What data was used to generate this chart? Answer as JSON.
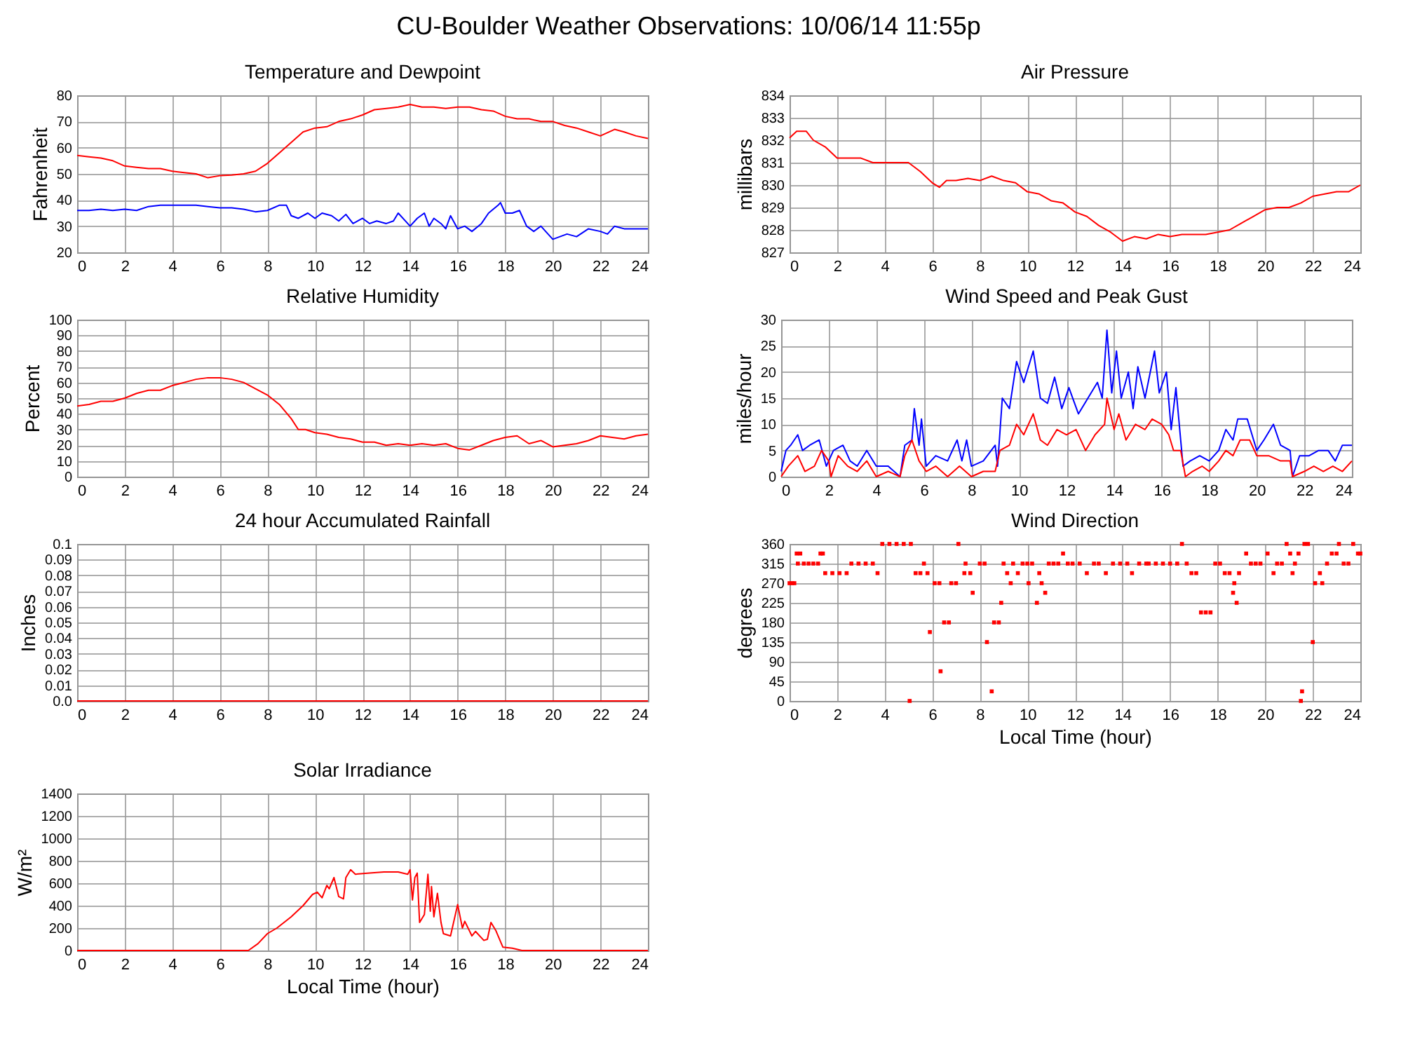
{
  "chart_data": [
    {
      "type": "line",
      "title": "Temperature and Dewpoint",
      "ylabel": "Fahrenheit",
      "annotations": [
        "CU-Boulder Weather Observations: 10/06/14 11:55p"
      ],
      "xlim": [
        0,
        24
      ],
      "xticks": [
        0,
        2,
        4,
        6,
        8,
        10,
        12,
        14,
        16,
        18,
        20,
        22,
        24
      ],
      "ylim": [
        20,
        80
      ],
      "yticks": [
        20,
        30,
        40,
        50,
        60,
        70,
        80
      ],
      "grid": true,
      "series": [
        {
          "color": "#ff0000",
          "x": [
            0,
            0.5,
            1,
            1.5,
            2,
            2.5,
            3,
            3.5,
            4,
            4.5,
            5,
            5.5,
            6,
            6.5,
            7,
            7.5,
            8,
            8.5,
            9,
            9.5,
            10,
            10.5,
            11,
            11.5,
            12,
            12.5,
            13,
            13.5,
            14,
            14.5,
            15,
            15.5,
            16,
            16.5,
            17,
            17.5,
            18,
            18.5,
            19,
            19.5,
            20,
            20.5,
            21,
            21.5,
            22,
            22.6,
            23,
            23.5,
            24
          ],
          "values": [
            57,
            56.5,
            56,
            55,
            53,
            52.5,
            52,
            52,
            51,
            50.5,
            50,
            48.5,
            49.3,
            49.5,
            50,
            51,
            54,
            58,
            62,
            66,
            67.5,
            68,
            70,
            71,
            72.5,
            74.5,
            75,
            75.5,
            76.5,
            75.5,
            75.5,
            75,
            75.5,
            75.5,
            74.5,
            74,
            72,
            71,
            71,
            70,
            70,
            68.5,
            67.5,
            66,
            64.5,
            67,
            66,
            64.5,
            63.5
          ]
        },
        {
          "color": "#0000ff",
          "x": [
            0,
            0.5,
            1,
            1.5,
            2,
            2.5,
            3,
            3.5,
            4,
            4.5,
            5,
            5.5,
            6,
            6.5,
            7,
            7.5,
            8,
            8.5,
            8.8,
            9,
            9.3,
            9.7,
            10,
            10.3,
            10.7,
            11,
            11.3,
            11.6,
            12,
            12.3,
            12.6,
            13,
            13.3,
            13.5,
            13.8,
            14,
            14.3,
            14.6,
            14.8,
            15,
            15.3,
            15.5,
            15.7,
            16,
            16.3,
            16.6,
            17,
            17.3,
            17.7,
            17.8,
            18,
            18.3,
            18.6,
            18.9,
            19.2,
            19.5,
            19.8,
            20,
            20.3,
            20.6,
            21,
            21.5,
            22,
            22.3,
            22.6,
            23,
            23.5,
            24
          ],
          "values": [
            36,
            36,
            36.5,
            36,
            36.5,
            36,
            37.5,
            38,
            38,
            38,
            38,
            37.5,
            37,
            37,
            36.5,
            35.5,
            36,
            38,
            38,
            34,
            33,
            35,
            33,
            35,
            34,
            32,
            34.5,
            31,
            33,
            31,
            32,
            31,
            32,
            35,
            32,
            30,
            33,
            35,
            30,
            33,
            31,
            29,
            34,
            29,
            30,
            28,
            31,
            35,
            38,
            39,
            35,
            35,
            36,
            30,
            28,
            30,
            27,
            25,
            26,
            27,
            26,
            29,
            28,
            27,
            30,
            29,
            29,
            29
          ]
        }
      ]
    },
    {
      "type": "line",
      "title": "Air Pressure",
      "ylabel": "millibars",
      "xlim": [
        0,
        24
      ],
      "xticks": [
        0,
        2,
        4,
        6,
        8,
        10,
        12,
        14,
        16,
        18,
        20,
        22,
        24
      ],
      "ylim": [
        827,
        834
      ],
      "yticks": [
        827,
        828,
        829,
        830,
        831,
        832,
        833,
        834
      ],
      "grid": true,
      "series": [
        {
          "color": "#ff0000",
          "x": [
            0,
            0.3,
            0.7,
            1,
            1.5,
            2,
            2.5,
            3,
            3.5,
            4,
            4.5,
            5,
            5.5,
            6,
            6.3,
            6.6,
            7,
            7.5,
            8,
            8.5,
            9,
            9.5,
            10,
            10.5,
            11,
            11.5,
            12,
            12.5,
            13,
            13.5,
            14,
            14.5,
            15,
            15.5,
            16,
            16.5,
            17,
            17.5,
            18,
            18.5,
            19,
            19.5,
            20,
            20.5,
            21,
            21.5,
            22,
            22.5,
            23,
            23.5,
            24
          ],
          "values": [
            832.1,
            832.4,
            832.4,
            832,
            831.7,
            831.2,
            831.2,
            831.2,
            831,
            831,
            831,
            831,
            830.6,
            830.1,
            829.9,
            830.2,
            830.2,
            830.3,
            830.2,
            830.4,
            830.2,
            830.1,
            829.7,
            829.6,
            829.3,
            829.2,
            828.8,
            828.6,
            828.2,
            827.9,
            827.5,
            827.7,
            827.6,
            827.8,
            827.7,
            827.8,
            827.8,
            827.8,
            827.9,
            828,
            828.3,
            828.6,
            828.9,
            829,
            829,
            829.2,
            829.5,
            829.6,
            829.7,
            829.7,
            830
          ]
        }
      ]
    },
    {
      "type": "line",
      "title": "Relative Humidity",
      "ylabel": "Percent",
      "xlim": [
        0,
        24
      ],
      "xticks": [
        0,
        2,
        4,
        6,
        8,
        10,
        12,
        14,
        16,
        18,
        20,
        22,
        24
      ],
      "ylim": [
        0,
        100
      ],
      "yticks": [
        0,
        10,
        20,
        30,
        40,
        50,
        60,
        70,
        80,
        90,
        100
      ],
      "grid": true,
      "series": [
        {
          "color": "#ff0000",
          "x": [
            0,
            0.5,
            1,
            1.5,
            2,
            2.5,
            3,
            3.5,
            4,
            4.5,
            5,
            5.5,
            6,
            6.5,
            7,
            7.5,
            8,
            8.5,
            9,
            9.3,
            9.6,
            10,
            10.5,
            11,
            11.5,
            12,
            12.5,
            13,
            13.5,
            14,
            14.5,
            15,
            15.5,
            16,
            16.5,
            17,
            17.5,
            18,
            18.5,
            19,
            19.5,
            20,
            20.5,
            21,
            21.5,
            22,
            22.5,
            23,
            23.5,
            24
          ],
          "values": [
            45,
            46,
            48,
            48,
            50,
            53,
            55,
            55,
            58,
            60,
            62,
            63,
            63,
            62,
            60,
            56,
            52,
            46,
            37,
            30,
            30,
            28,
            27,
            25,
            24,
            22,
            22,
            20,
            21,
            20,
            21,
            20,
            21,
            18,
            17,
            20,
            23,
            25,
            26,
            21,
            23,
            19,
            20,
            21,
            23,
            26,
            25,
            24,
            26,
            27
          ]
        }
      ]
    },
    {
      "type": "line",
      "title": "Wind Speed and Peak Gust",
      "ylabel": "miles/hour",
      "xlim": [
        0,
        24
      ],
      "xticks": [
        0,
        2,
        4,
        6,
        8,
        10,
        12,
        14,
        16,
        18,
        20,
        22,
        24
      ],
      "ylim": [
        0,
        30
      ],
      "yticks": [
        0,
        5,
        10,
        15,
        20,
        25,
        30
      ],
      "grid": true,
      "series": [
        {
          "color": "#0000ff",
          "x": [
            0,
            0.2,
            0.4,
            0.7,
            0.9,
            1.2,
            1.6,
            1.9,
            2.2,
            2.6,
            2.9,
            3.2,
            3.6,
            4,
            4.5,
            5,
            5.2,
            5.5,
            5.6,
            5.8,
            5.9,
            6.1,
            6.5,
            7,
            7.4,
            7.6,
            7.8,
            8,
            8.5,
            9,
            9.1,
            9.3,
            9.6,
            9.9,
            10.2,
            10.6,
            10.9,
            11.2,
            11.5,
            11.8,
            12.1,
            12.5,
            12.9,
            13.3,
            13.5,
            13.7,
            13.9,
            14.1,
            14.3,
            14.6,
            14.8,
            15,
            15.3,
            15.7,
            15.9,
            16.2,
            16.4,
            16.6,
            16.9,
            17.2,
            17.6,
            18,
            18.4,
            18.7,
            19,
            19.2,
            19.6,
            19.8,
            20,
            20.3,
            20.7,
            21,
            21.4,
            21.5,
            21.8,
            22.2,
            22.6,
            23,
            23.3,
            23.6,
            24
          ],
          "values": [
            1,
            5,
            6,
            8,
            5,
            6,
            7,
            2,
            5,
            6,
            3,
            2,
            5,
            2,
            2,
            0,
            6,
            7,
            13,
            6,
            11,
            2,
            4,
            3,
            7,
            3,
            7,
            2,
            3,
            6,
            2,
            15,
            13,
            22,
            18,
            24,
            15,
            14,
            19,
            13,
            17,
            12,
            15,
            18,
            15,
            28,
            16,
            24,
            15,
            20,
            13,
            21,
            15,
            24,
            16,
            20,
            9,
            17,
            2,
            3,
            4,
            3,
            5,
            9,
            7,
            11,
            11,
            8,
            5,
            7,
            10,
            6,
            5,
            0,
            4,
            4,
            5,
            5,
            3,
            6,
            6
          ]
        },
        {
          "color": "#ff0000",
          "x": [
            0,
            0.3,
            0.7,
            1,
            1.4,
            1.7,
            2,
            2.1,
            2.4,
            2.8,
            3.2,
            3.6,
            4,
            4.5,
            5,
            5.2,
            5.5,
            5.8,
            6.1,
            6.5,
            7,
            7.5,
            8,
            8.5,
            9,
            9.2,
            9.6,
            9.9,
            10.2,
            10.6,
            10.9,
            11.2,
            11.6,
            12,
            12.4,
            12.8,
            13.2,
            13.6,
            13.7,
            14,
            14.2,
            14.5,
            14.9,
            15.3,
            15.6,
            16,
            16.3,
            16.5,
            16.8,
            17,
            17.3,
            17.7,
            18,
            18.4,
            18.7,
            19,
            19.3,
            19.7,
            20,
            20.5,
            21,
            21.4,
            21.5,
            22,
            22.4,
            22.8,
            23.2,
            23.6,
            24
          ],
          "values": [
            0,
            2,
            4,
            1,
            2,
            5,
            3,
            0,
            4,
            2,
            1,
            3,
            0,
            1,
            0,
            4,
            7,
            3,
            1,
            2,
            0,
            2,
            0,
            1,
            1,
            5,
            6,
            10,
            8,
            12,
            7,
            6,
            9,
            8,
            9,
            5,
            8,
            10,
            15,
            9,
            12,
            7,
            10,
            9,
            11,
            10,
            8,
            5,
            5,
            0,
            1,
            2,
            1,
            3,
            5,
            4,
            7,
            7,
            4,
            4,
            3,
            3,
            0,
            1,
            2,
            1,
            2,
            1,
            3
          ]
        }
      ]
    },
    {
      "type": "line",
      "title": "24 hour Accumulated Rainfall",
      "ylabel": "Inches",
      "xlim": [
        0,
        24
      ],
      "xticks": [
        0,
        2,
        4,
        6,
        8,
        10,
        12,
        14,
        16,
        18,
        20,
        22,
        24
      ],
      "ylim": [
        0,
        0.1
      ],
      "yticks": [
        {
          "value": 0,
          "label": "0.0"
        },
        0.01,
        0.02,
        0.03,
        0.04,
        0.05,
        0.06,
        0.07,
        0.08,
        0.09,
        0.1
      ],
      "grid": true,
      "series": [
        {
          "color": "#ff0000",
          "x": [
            0,
            24
          ],
          "values": [
            0,
            0
          ]
        }
      ]
    },
    {
      "type": "scatter",
      "title": "Wind Direction",
      "ylabel": "degrees",
      "xlabel": "Local Time (hour)",
      "marker": "square",
      "xlim": [
        0,
        24
      ],
      "xticks": [
        0,
        2,
        4,
        6,
        8,
        10,
        12,
        14,
        16,
        18,
        20,
        22,
        24
      ],
      "ylim": [
        0,
        360
      ],
      "yticks": [
        0,
        45,
        90,
        135,
        180,
        225,
        270,
        315,
        360
      ],
      "grid": true,
      "series": [
        {
          "color": "#ff0000",
          "x": [
            0,
            0.1,
            0.2,
            0.3,
            0.35,
            0.45,
            0.6,
            0.8,
            1,
            1.2,
            1.3,
            1.4,
            1.5,
            1.8,
            2.1,
            2.4,
            2.6,
            2.9,
            3.2,
            3.5,
            3.7,
            3.9,
            4.2,
            4.5,
            4.8,
            5.05,
            5.1,
            5.3,
            5.5,
            5.65,
            5.8,
            5.9,
            6.1,
            6.3,
            6.35,
            6.5,
            6.7,
            6.8,
            7,
            7.1,
            7.35,
            7.4,
            7.6,
            7.7,
            8,
            8.2,
            8.3,
            8.5,
            8.6,
            8.8,
            8.9,
            9,
            9.15,
            9.3,
            9.4,
            9.6,
            9.8,
            10,
            10.05,
            10.2,
            10.4,
            10.5,
            10.6,
            10.75,
            10.9,
            11.1,
            11.3,
            11.5,
            11.7,
            11.9,
            12.2,
            12.5,
            12.8,
            13,
            13.3,
            13.6,
            13.9,
            14.2,
            14.4,
            14.7,
            15,
            15.1,
            15.4,
            15.7,
            16,
            16.3,
            16.5,
            16.7,
            16.9,
            17.1,
            17.3,
            17.5,
            17.7,
            17.9,
            18.1,
            18.3,
            18.5,
            18.65,
            18.7,
            18.8,
            18.9,
            19.2,
            19.4,
            19.6,
            19.8,
            20.1,
            20.35,
            20.5,
            20.7,
            20.9,
            21.05,
            21.15,
            21.25,
            21.4,
            21.5,
            21.55,
            21.65,
            21.8,
            22,
            22.1,
            22.3,
            22.4,
            22.6,
            22.8,
            23,
            23.1,
            23.3,
            23.5,
            23.7,
            23.9,
            24
          ],
          "values": [
            270,
            270,
            270,
            338,
            315,
            338,
            315,
            315,
            315,
            315,
            338,
            338,
            293,
            293,
            293,
            293,
            315,
            315,
            315,
            315,
            293,
            360,
            360,
            360,
            360,
            0,
            360,
            293,
            293,
            315,
            293,
            158,
            270,
            270,
            68,
            180,
            180,
            270,
            270,
            360,
            293,
            315,
            293,
            248,
            315,
            315,
            135,
            22,
            180,
            180,
            225,
            315,
            293,
            270,
            315,
            293,
            315,
            315,
            270,
            315,
            225,
            293,
            270,
            248,
            315,
            315,
            315,
            338,
            315,
            315,
            315,
            293,
            315,
            315,
            293,
            315,
            315,
            315,
            293,
            315,
            315,
            315,
            315,
            315,
            315,
            315,
            360,
            315,
            293,
            293,
            203,
            203,
            203,
            315,
            315,
            293,
            293,
            248,
            270,
            225,
            293,
            338,
            315,
            315,
            315,
            338,
            293,
            315,
            315,
            360,
            338,
            293,
            315,
            338,
            0,
            22,
            360,
            360,
            135,
            270,
            293,
            270,
            315,
            338,
            338,
            360,
            315,
            315,
            360,
            338,
            338
          ]
        }
      ]
    },
    {
      "type": "line",
      "title": "Solar Irradiance",
      "ylabel": "W/m²",
      "xlabel": "Local Time (hour)",
      "xlim": [
        0,
        24
      ],
      "xticks": [
        0,
        2,
        4,
        6,
        8,
        10,
        12,
        14,
        16,
        18,
        20,
        22,
        24
      ],
      "ylim": [
        0,
        1400
      ],
      "yticks": [
        0,
        200,
        400,
        600,
        800,
        1000,
        1200,
        1400
      ],
      "grid": true,
      "series": [
        {
          "color": "#ff0000",
          "x": [
            0,
            7.2,
            7.6,
            8,
            8.4,
            9,
            9.5,
            9.9,
            10.1,
            10.3,
            10.5,
            10.6,
            10.8,
            11,
            11.2,
            11.3,
            11.5,
            11.7,
            12.3,
            12.9,
            13.5,
            13.9,
            14,
            14.1,
            14.2,
            14.3,
            14.4,
            14.6,
            14.75,
            14.85,
            14.9,
            15,
            15.15,
            15.3,
            15.4,
            15.7,
            16,
            16.2,
            16.3,
            16.6,
            16.75,
            17.1,
            17.25,
            17.4,
            17.6,
            17.9,
            18.3,
            18.7,
            24
          ],
          "values": [
            0,
            0,
            60,
            150,
            200,
            300,
            400,
            500,
            520,
            470,
            580,
            550,
            650,
            480,
            460,
            650,
            720,
            680,
            690,
            700,
            700,
            680,
            720,
            450,
            650,
            690,
            250,
            320,
            680,
            350,
            570,
            300,
            510,
            250,
            150,
            130,
            410,
            200,
            260,
            130,
            170,
            90,
            100,
            250,
            180,
            30,
            20,
            0,
            0
          ]
        }
      ]
    }
  ]
}
